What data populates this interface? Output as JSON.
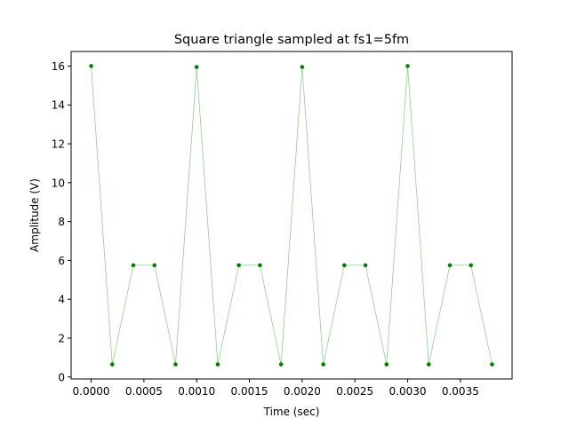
{
  "chart_data": {
    "type": "line",
    "title": "Square triangle sampled at fs1=5fm",
    "xlabel": "Time (sec)",
    "ylabel": "Amplitude (V)",
    "xlim": [
      -0.00019,
      0.00399
    ],
    "ylim": [
      -0.1,
      16.75
    ],
    "x_ticks": [
      0.0,
      0.0005,
      0.001,
      0.0015,
      0.002,
      0.0025,
      0.003,
      0.0035
    ],
    "x_tick_labels": [
      "0.0000",
      "0.0005",
      "0.0010",
      "0.0015",
      "0.0020",
      "0.0025",
      "0.0030",
      "0.0035"
    ],
    "y_ticks": [
      0,
      2,
      4,
      6,
      8,
      10,
      12,
      14,
      16
    ],
    "y_tick_labels": [
      "0",
      "2",
      "4",
      "6",
      "8",
      "10",
      "12",
      "14",
      "16"
    ],
    "grid": false,
    "series": [
      {
        "line_color": "#8fd18f",
        "marker_color": "#008000",
        "x": [
          0.0,
          0.0002,
          0.0004,
          0.0006,
          0.0008,
          0.001,
          0.0012,
          0.0014,
          0.0016,
          0.0018,
          0.002,
          0.0022,
          0.0024,
          0.0026,
          0.0028,
          0.003,
          0.0032,
          0.0034,
          0.0036,
          0.0038
        ],
        "y": [
          16.0,
          0.65,
          5.75,
          5.75,
          0.65,
          15.95,
          0.65,
          5.75,
          5.75,
          0.65,
          15.95,
          0.65,
          5.75,
          5.75,
          0.65,
          16.0,
          0.65,
          5.75,
          5.75,
          0.65
        ]
      }
    ]
  }
}
